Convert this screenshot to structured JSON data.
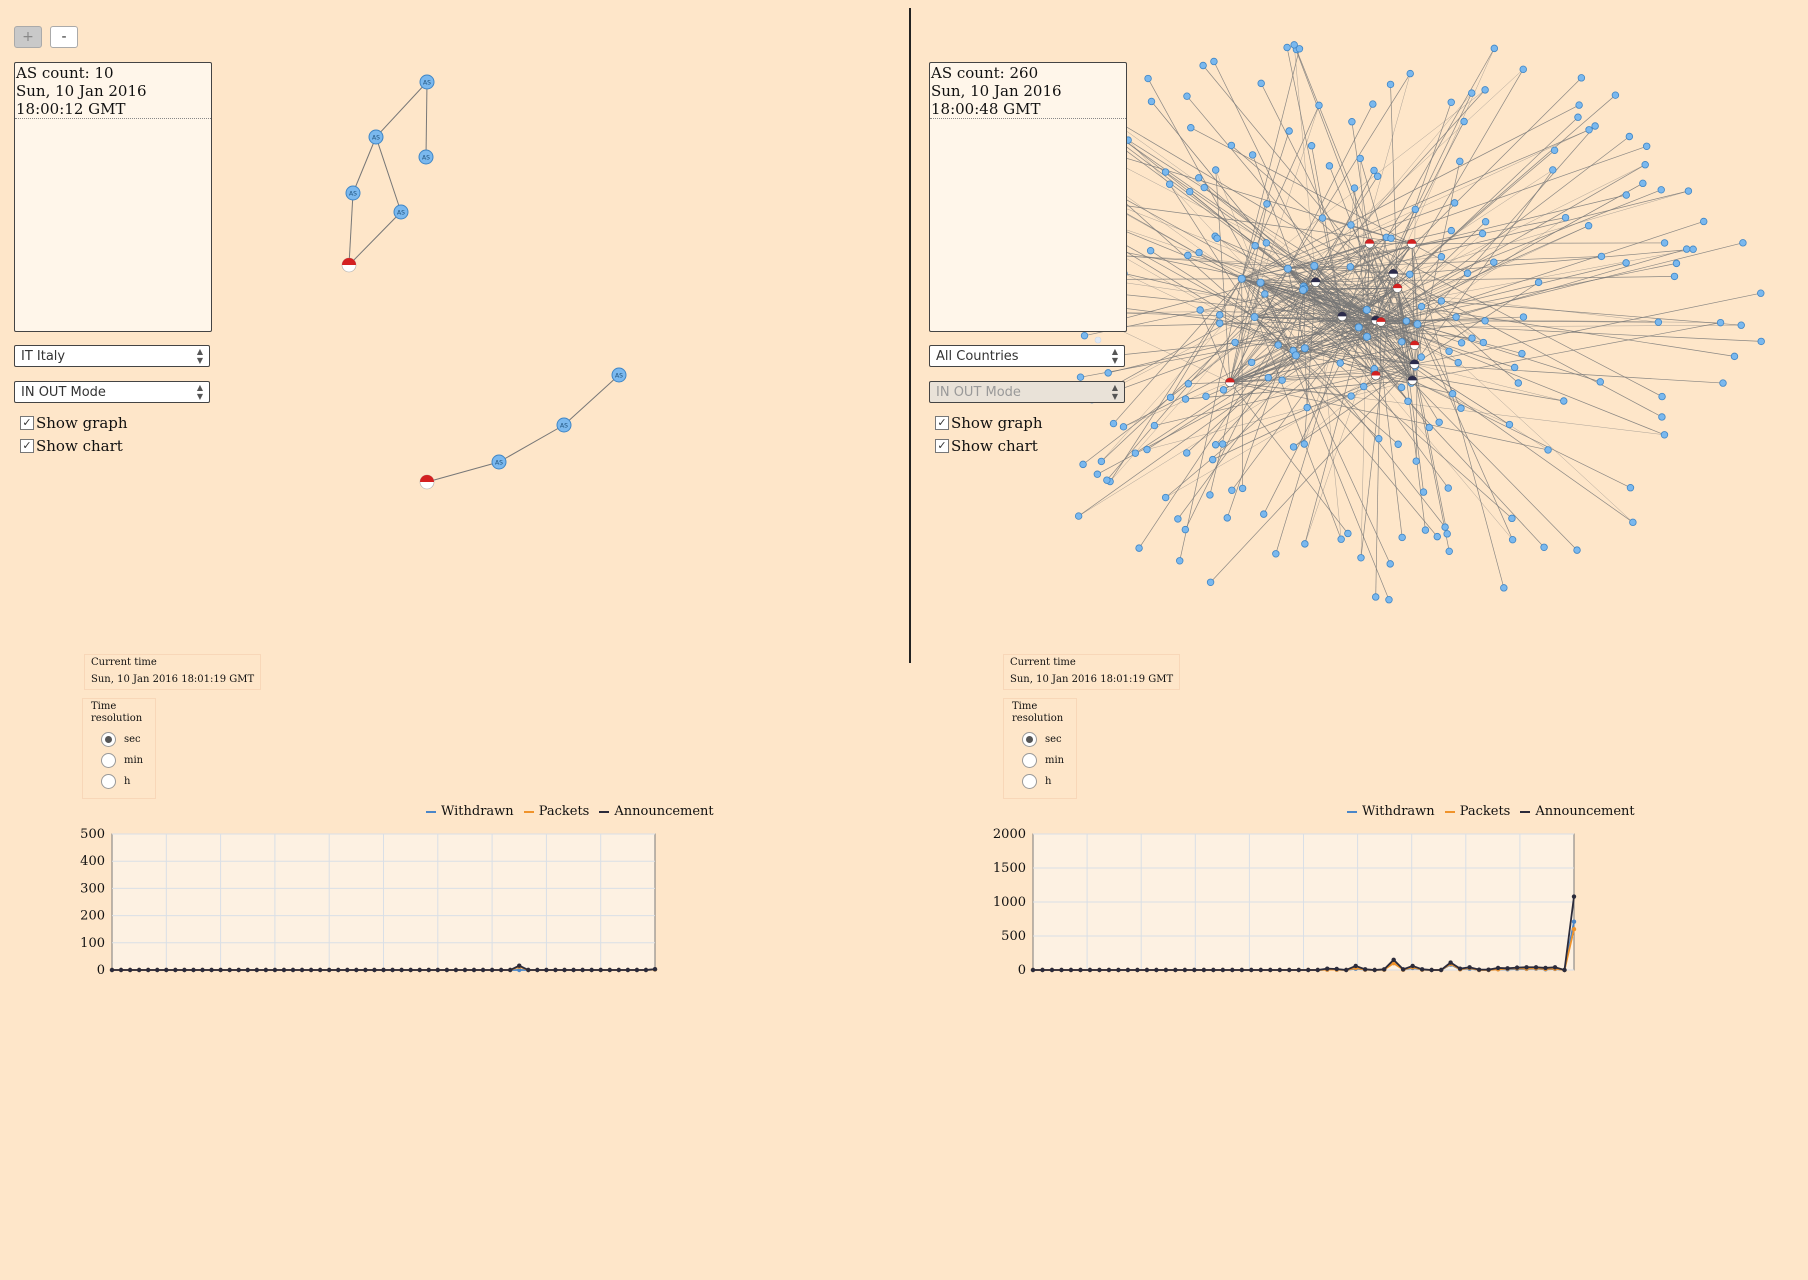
{
  "zoom": {
    "in_label": "+",
    "out_label": "-"
  },
  "left": {
    "as_count": "AS count: 10",
    "timestamp": "Sun, 10 Jan 2016 18:00:12 GMT",
    "country_select": "IT Italy",
    "mode_select": "IN OUT Mode",
    "show_graph": "Show graph",
    "show_chart": "Show chart",
    "current_time_label": "Current time",
    "current_time": "Sun, 10 Jan 2016 18:01:19 GMT",
    "time_res_label": "Time resolution",
    "resolutions": [
      "sec",
      "min",
      "h"
    ],
    "node_label": "AS"
  },
  "right": {
    "as_count": "AS count: 260",
    "timestamp": "Sun, 10 Jan 2016 18:00:48 GMT",
    "country_select": "All Countries",
    "mode_select": "IN OUT Mode",
    "show_graph": "Show graph",
    "show_chart": "Show chart",
    "current_time_label": "Current time",
    "current_time": "Sun, 10 Jan 2016 18:01:19 GMT",
    "time_res_label": "Time resolution",
    "resolutions": [
      "sec",
      "min",
      "h"
    ]
  },
  "legend": [
    "Withdrawn",
    "Packets",
    "Announcement"
  ],
  "colors": {
    "withdrawn": "#4a86c8",
    "packets": "#f0932b",
    "announcement": "#2b2b3b",
    "node": "#7ab8ee",
    "node_stroke": "#3f86c6",
    "edge": "#777777",
    "flag_red": "#d42020",
    "background": "#fee6c9"
  },
  "chart_data": [
    {
      "type": "line",
      "title": "",
      "xlabel": "",
      "ylabel": "",
      "ylim": [
        0,
        500
      ],
      "yticks": [
        0,
        100,
        200,
        300,
        400,
        500
      ],
      "grid": true,
      "legend_position": "top",
      "series": [
        {
          "name": "Withdrawn",
          "values": [
            0,
            0,
            0,
            0,
            0,
            0,
            0,
            0,
            0,
            0,
            0,
            0,
            0,
            0,
            0,
            0,
            0,
            0,
            0,
            0,
            0,
            0,
            0,
            0,
            0,
            0,
            0,
            0,
            0,
            0,
            0,
            0,
            0,
            0,
            0,
            0,
            0,
            0,
            0,
            0,
            0,
            0,
            0,
            0,
            0,
            0,
            0,
            0,
            0,
            0,
            0,
            0,
            0,
            0,
            0,
            0,
            0,
            0,
            0,
            0,
            2
          ]
        },
        {
          "name": "Packets",
          "values": [
            0,
            0,
            0,
            0,
            0,
            0,
            0,
            0,
            0,
            0,
            0,
            0,
            0,
            0,
            0,
            0,
            0,
            0,
            0,
            0,
            0,
            0,
            0,
            0,
            0,
            0,
            0,
            0,
            0,
            0,
            0,
            0,
            0,
            0,
            0,
            0,
            0,
            0,
            0,
            0,
            0,
            0,
            0,
            0,
            0,
            12,
            0,
            0,
            0,
            0,
            0,
            0,
            0,
            0,
            0,
            0,
            0,
            0,
            0,
            0,
            2
          ]
        },
        {
          "name": "Announcement",
          "values": [
            0,
            0,
            0,
            0,
            0,
            0,
            0,
            0,
            0,
            0,
            0,
            0,
            0,
            0,
            0,
            0,
            0,
            0,
            0,
            0,
            0,
            0,
            0,
            0,
            0,
            0,
            0,
            0,
            0,
            0,
            0,
            0,
            0,
            0,
            0,
            0,
            0,
            0,
            0,
            0,
            0,
            0,
            0,
            0,
            0,
            16,
            0,
            0,
            0,
            0,
            0,
            0,
            0,
            0,
            0,
            0,
            0,
            0,
            0,
            0,
            3
          ]
        }
      ]
    },
    {
      "type": "line",
      "title": "",
      "xlabel": "",
      "ylabel": "",
      "ylim": [
        0,
        2000
      ],
      "yticks": [
        0,
        500,
        1000,
        1500,
        2000
      ],
      "grid": true,
      "legend_position": "top",
      "series": [
        {
          "name": "Withdrawn",
          "values": [
            0,
            0,
            0,
            0,
            0,
            0,
            0,
            0,
            0,
            0,
            0,
            0,
            0,
            0,
            0,
            0,
            0,
            0,
            0,
            0,
            0,
            0,
            0,
            0,
            0,
            0,
            0,
            0,
            0,
            0,
            0,
            5,
            5,
            0,
            20,
            5,
            0,
            5,
            120,
            5,
            30,
            5,
            0,
            0,
            80,
            10,
            20,
            0,
            0,
            10,
            10,
            15,
            15,
            20,
            10,
            15,
            0,
            710
          ]
        },
        {
          "name": "Packets",
          "values": [
            0,
            0,
            0,
            0,
            0,
            0,
            0,
            0,
            0,
            0,
            0,
            0,
            0,
            0,
            0,
            0,
            0,
            0,
            0,
            0,
            0,
            0,
            0,
            0,
            0,
            0,
            0,
            0,
            0,
            0,
            0,
            5,
            5,
            0,
            30,
            5,
            0,
            5,
            100,
            5,
            40,
            5,
            0,
            0,
            90,
            10,
            30,
            0,
            0,
            10,
            20,
            25,
            20,
            25,
            15,
            20,
            0,
            600
          ]
        },
        {
          "name": "Announcement",
          "values": [
            0,
            0,
            0,
            0,
            0,
            0,
            0,
            0,
            0,
            0,
            0,
            0,
            0,
            0,
            0,
            0,
            0,
            0,
            0,
            0,
            0,
            0,
            0,
            0,
            0,
            0,
            0,
            0,
            0,
            0,
            0,
            20,
            15,
            0,
            60,
            10,
            0,
            10,
            150,
            10,
            60,
            10,
            0,
            0,
            110,
            20,
            40,
            5,
            5,
            30,
            25,
            35,
            40,
            40,
            30,
            40,
            0,
            1080
          ]
        }
      ]
    }
  ]
}
